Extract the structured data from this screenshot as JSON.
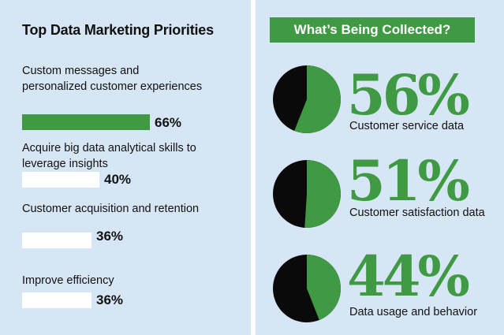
{
  "left": {
    "title": "Top Data Marketing Priorities",
    "items": [
      {
        "label": "Custom messages and personalized customer experiences",
        "value": 66,
        "display": "66%",
        "color": "#3f9a43"
      },
      {
        "label": "Acquire big data analytical skills to leverage insights",
        "value": 40,
        "display": "40%",
        "color": "#ffffff"
      },
      {
        "label": "Customer acquisition and retention",
        "value": 36,
        "display": "36%",
        "color": "#ffffff"
      },
      {
        "label": "Improve efficiency",
        "value": 36,
        "display": "36%",
        "color": "#ffffff"
      }
    ]
  },
  "right": {
    "title": "What’s Being Collected?",
    "stats": [
      {
        "value": 56,
        "display": "56%",
        "label": "Customer service data"
      },
      {
        "value": 51,
        "display": "51%",
        "label": "Customer satisfaction data"
      },
      {
        "value": 44,
        "display": "44%",
        "label": "Data usage and behavior"
      }
    ]
  },
  "colors": {
    "accent": "#3f9a43",
    "pie_rest": "#0a0a0a",
    "panel": "#d6e6f4"
  },
  "chart_data": [
    {
      "type": "bar",
      "title": "Top Data Marketing Priorities",
      "categories": [
        "Custom messages and personalized customer experiences",
        "Acquire big data analytical skills to leverage insights",
        "Customer acquisition and retention",
        "Improve efficiency"
      ],
      "values": [
        66,
        40,
        36,
        36
      ],
      "unit": "%"
    },
    {
      "type": "pie",
      "title": "What’s Being Collected?",
      "categories": [
        "Customer service data",
        "Customer satisfaction data",
        "Data usage and behavior"
      ],
      "values": [
        56,
        51,
        44
      ],
      "unit": "%"
    }
  ]
}
